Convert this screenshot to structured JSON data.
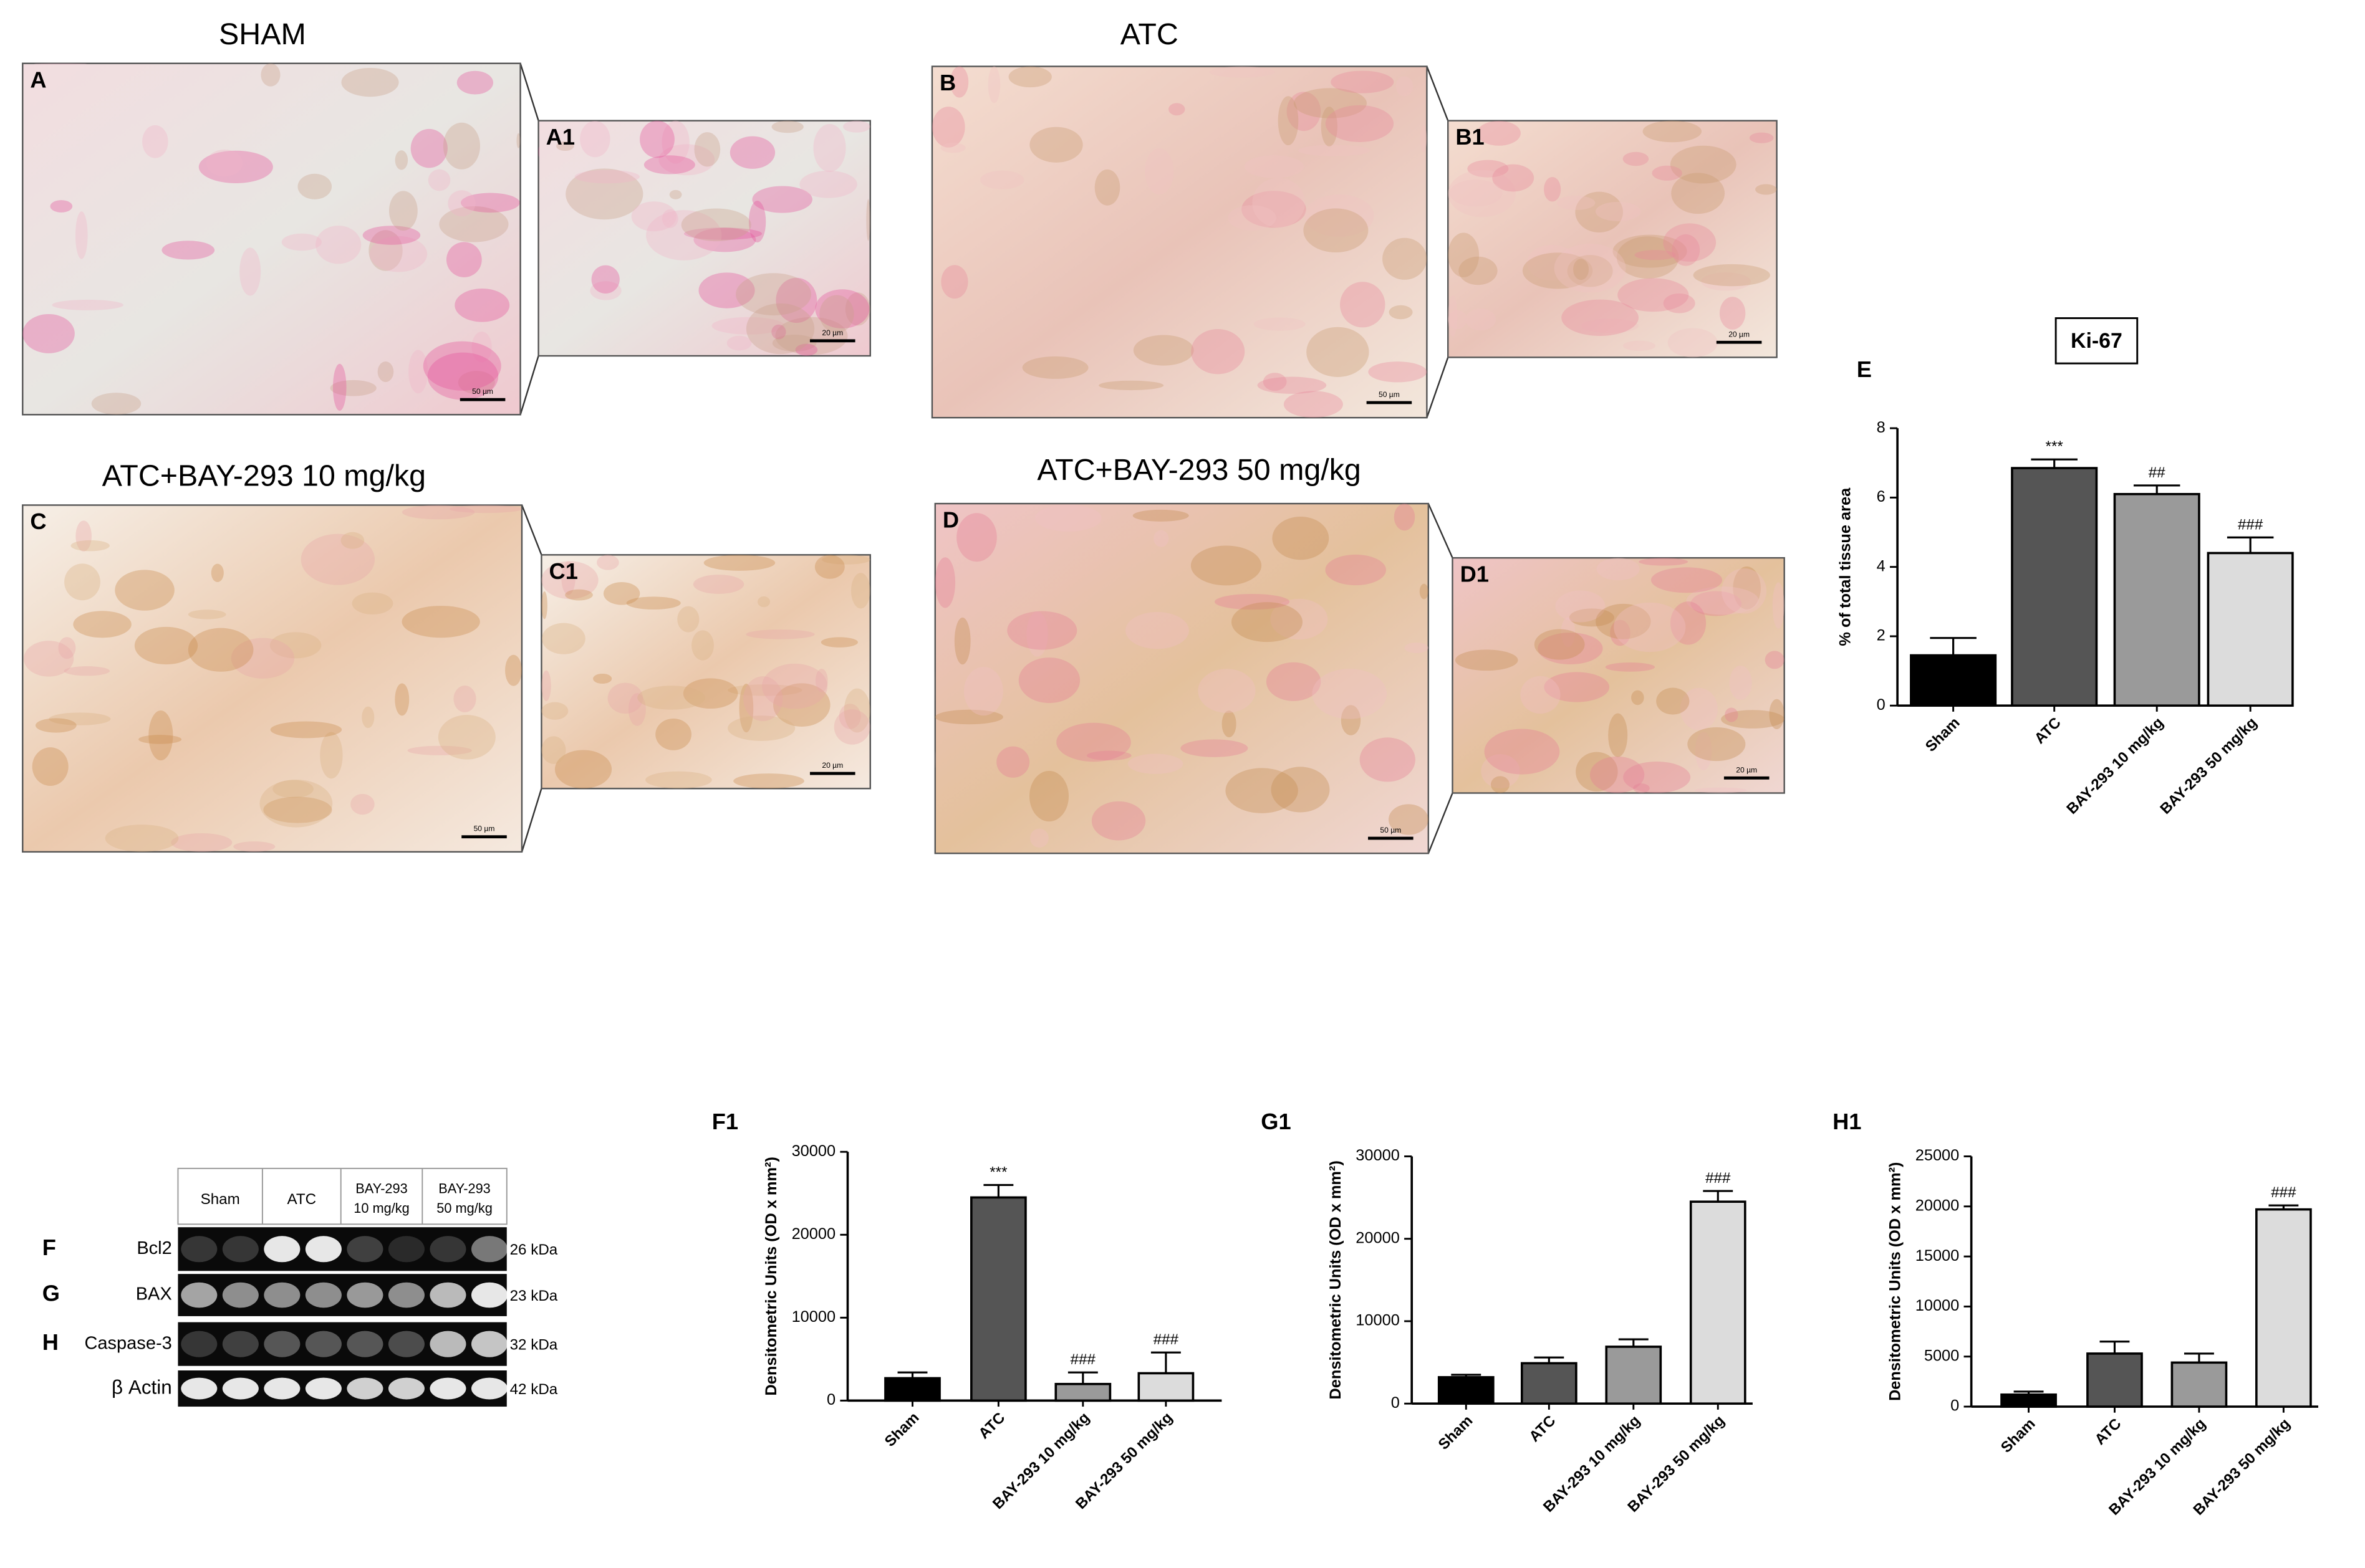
{
  "figure": {
    "panels": [
      {
        "title": "SHAM",
        "letter": "A",
        "inset_letter": "A1",
        "scale_bar": "50 µm",
        "inset_scale_bar": "20 µm"
      },
      {
        "title": "ATC",
        "letter": "B",
        "inset_letter": "B1",
        "scale_bar": "50 µm",
        "inset_scale_bar": "20 µm"
      },
      {
        "title": "ATC+BAY-293 10 mg/kg",
        "letter": "C",
        "inset_letter": "C1",
        "scale_bar": "50 µm",
        "inset_scale_bar": "20 µm"
      },
      {
        "title": "ATC+BAY-293 50 mg/kg",
        "letter": "D",
        "inset_letter": "D1",
        "scale_bar": "50 µm",
        "inset_scale_bar": "20 µm"
      }
    ],
    "blot": {
      "lanes": [
        [
          "Sham"
        ],
        [
          "ATC"
        ],
        [
          "BAY-293",
          "10 mg/kg"
        ],
        [
          "BAY-293",
          "50 mg/kg"
        ]
      ],
      "rows": [
        {
          "letter": "F",
          "protein": "Bcl2",
          "weight": "26 kDa"
        },
        {
          "letter": "G",
          "protein": "BAX",
          "weight": "23 kDa"
        },
        {
          "letter": "H",
          "protein": "Caspase-3",
          "weight": "32 kDa"
        },
        {
          "protein": "β Actin",
          "weight": "42 kDa"
        }
      ]
    }
  },
  "chart_data": [
    {
      "type": "bar",
      "letter": "E",
      "title": "Ki-67",
      "y_label": "% of total tissue area",
      "categories": [
        "Sham",
        "ATC",
        "BAY-293 10 mg/kg",
        "BAY-293 50 mg/kg"
      ],
      "values": [
        1.45,
        6.85,
        6.1,
        4.4
      ],
      "errors": [
        0.5,
        0.25,
        0.25,
        0.45
      ],
      "significance": [
        null,
        "***",
        "##",
        "###"
      ],
      "colors": [
        "#000000",
        "#555555",
        "#9a9a9a",
        "#dcdcdc"
      ],
      "ylim": [
        0,
        8
      ],
      "yticks": [
        0,
        2,
        4,
        6,
        8
      ]
    },
    {
      "type": "bar",
      "letter": "F1",
      "y_label": "Densitometric Units (OD x mm²)",
      "categories": [
        "Sham",
        "ATC",
        "BAY-293 10 mg/kg",
        "BAY-293 50 mg/kg"
      ],
      "values": [
        2700,
        24500,
        2000,
        3300
      ],
      "errors": [
        700,
        1500,
        1400,
        2500
      ],
      "significance": [
        null,
        "***",
        "###",
        "###"
      ],
      "colors": [
        "#000000",
        "#555555",
        "#9a9a9a",
        "#dcdcdc"
      ],
      "ylim": [
        0,
        30000
      ],
      "yticks": [
        0,
        10000,
        20000,
        30000
      ]
    },
    {
      "type": "bar",
      "letter": "G1",
      "y_label": "Densitometric Units (OD x mm²)",
      "categories": [
        "Sham",
        "ATC",
        "BAY-293 10 mg/kg",
        "BAY-293 50 mg/kg"
      ],
      "values": [
        3200,
        4900,
        6900,
        24500
      ],
      "errors": [
        300,
        700,
        900,
        1300
      ],
      "significance": [
        null,
        null,
        null,
        "###"
      ],
      "colors": [
        "#000000",
        "#555555",
        "#9a9a9a",
        "#dcdcdc"
      ],
      "ylim": [
        0,
        30000
      ],
      "yticks": [
        0,
        10000,
        20000,
        30000
      ]
    },
    {
      "type": "bar",
      "letter": "H1",
      "y_label": "Densitometric Units (OD x mm²)",
      "categories": [
        "Sham",
        "ATC",
        "BAY-293 10 mg/kg",
        "BAY-293 50 mg/kg"
      ],
      "values": [
        1200,
        5300,
        4400,
        19700
      ],
      "errors": [
        300,
        1200,
        900,
        400
      ],
      "significance": [
        null,
        null,
        null,
        "###"
      ],
      "colors": [
        "#000000",
        "#555555",
        "#9a9a9a",
        "#dcdcdc"
      ],
      "ylim": [
        0,
        25000
      ],
      "yticks": [
        0,
        5000,
        10000,
        15000,
        20000,
        25000
      ]
    }
  ]
}
